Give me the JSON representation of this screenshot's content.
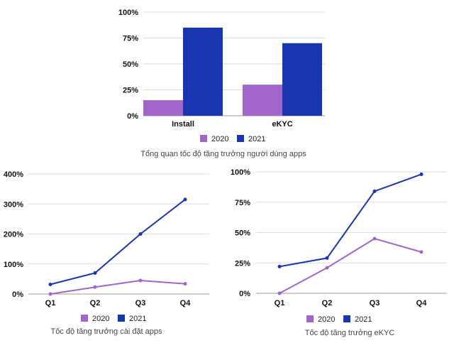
{
  "colors": {
    "2020": "#a066cc",
    "2021": "#1a35b0"
  },
  "chart_data": [
    {
      "type": "bar",
      "categories": [
        "Install",
        "eKYC"
      ],
      "series": [
        {
          "name": "2020",
          "values": [
            15,
            30
          ]
        },
        {
          "name": "2021",
          "values": [
            85,
            70
          ]
        }
      ],
      "yticks": [
        "0%",
        "25%",
        "50%",
        "75%",
        "100%"
      ],
      "ylim": [
        0,
        100
      ],
      "legend": [
        "2020",
        "2021"
      ],
      "caption": "Tổng quan tốc độ tăng trưởng người dùng apps"
    },
    {
      "type": "line",
      "categories": [
        "Q1",
        "Q2",
        "Q3",
        "Q4"
      ],
      "series": [
        {
          "name": "2020",
          "values": [
            0,
            23,
            45,
            34
          ]
        },
        {
          "name": "2021",
          "values": [
            32,
            70,
            200,
            315
          ]
        }
      ],
      "yticks": [
        "0%",
        "100%",
        "200%",
        "300%",
        "400%"
      ],
      "ylim": [
        0,
        400
      ],
      "legend": [
        "2020",
        "2021"
      ],
      "caption": "Tốc độ tăng trưởng cài đặt apps"
    },
    {
      "type": "line",
      "categories": [
        "Q1",
        "Q2",
        "Q3",
        "Q4"
      ],
      "series": [
        {
          "name": "2020",
          "values": [
            0,
            21,
            45,
            34
          ]
        },
        {
          "name": "2021",
          "values": [
            22,
            29,
            84,
            98
          ]
        }
      ],
      "yticks": [
        "0%",
        "25%",
        "50%",
        "75%",
        "100%"
      ],
      "ylim": [
        0,
        100
      ],
      "legend": [
        "2020",
        "2021"
      ],
      "caption": "Tốc độ tăng trưởng eKYC"
    }
  ]
}
